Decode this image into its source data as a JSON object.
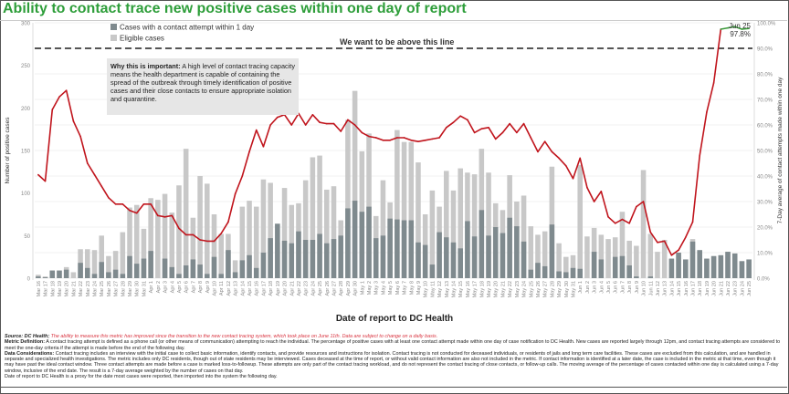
{
  "title": "Ability to contact trace new positive cases within one day of report",
  "chart_data": {
    "type": "bar",
    "title": "Ability to contact trace new positive cases within one day of report",
    "xlabel": "Date of report to DC Health",
    "ylabel": "Number of positive cases",
    "y2label": "7-Day average of contact attempts made within one day",
    "ylim": [
      0,
      300
    ],
    "y2lim": [
      0,
      100
    ],
    "yticks": [
      "0",
      "50",
      "100",
      "150",
      "200",
      "250",
      "300"
    ],
    "y2ticks": [
      "0.0%",
      "10.0%",
      "20.0%",
      "30.0%",
      "40.0%",
      "50.0%",
      "60.0%",
      "70.0%",
      "80.0%",
      "90.0%",
      "100.0%"
    ],
    "legend": [
      {
        "name": "Cases with a contact attempt within 1 day",
        "color": "#7f8a8e"
      },
      {
        "name": "Eligible cases",
        "color": "#c8c8c8"
      }
    ],
    "legend_position": "top-left",
    "target_line": {
      "value_pct": 90,
      "label": "We want to be above this line"
    },
    "end_annotation": {
      "date": "Jun 25",
      "value": "97.8%"
    },
    "line_color_below_target": "#c0141c",
    "line_color_above_target": "#3a9a3a",
    "categories": [
      "Mar 16",
      "Mar 17",
      "Mar 18",
      "Mar 19",
      "Mar 20",
      "Mar 21",
      "Mar 22",
      "Mar 23",
      "Mar 24",
      "Mar 25",
      "Mar 26",
      "Mar 27",
      "Mar 28",
      "Mar 29",
      "Mar 30",
      "Mar 31",
      "Apr 1",
      "Apr 2",
      "Apr 3",
      "Apr 4",
      "Apr 5",
      "Apr 6",
      "Apr 7",
      "Apr 8",
      "Apr 9",
      "Apr 10",
      "Apr 11",
      "Apr 12",
      "Apr 13",
      "Apr 14",
      "Apr 15",
      "Apr 16",
      "Apr 17",
      "Apr 18",
      "Apr 19",
      "Apr 20",
      "Apr 21",
      "Apr 22",
      "Apr 23",
      "Apr 24",
      "Apr 25",
      "Apr 26",
      "Apr 27",
      "Apr 28",
      "Apr 29",
      "Apr 30",
      "May 1",
      "May 2",
      "May 3",
      "May 4",
      "May 5",
      "May 6",
      "May 7",
      "May 8",
      "May 9",
      "May 10",
      "May 11",
      "May 12",
      "May 13",
      "May 14",
      "May 15",
      "May 16",
      "May 17",
      "May 18",
      "May 19",
      "May 20",
      "May 21",
      "May 22",
      "May 23",
      "May 24",
      "May 25",
      "May 26",
      "May 27",
      "May 28",
      "May 29",
      "May 30",
      "May 31",
      "Jun 1",
      "Jun 2",
      "Jun 3",
      "Jun 4",
      "Jun 5",
      "Jun 6",
      "Jun 7",
      "Jun 8",
      "Jun 9",
      "Jun 10",
      "Jun 11",
      "Jun 12",
      "Jun 13",
      "Jun 14",
      "Jun 15",
      "Jun 16",
      "Jun 17",
      "Jun 18",
      "Jun 19",
      "Jun 20",
      "Jun 21",
      "Jun 22",
      "Jun 23",
      "Jun 24",
      "Jun 25"
    ],
    "series": [
      {
        "name": "Eligible cases",
        "values": [
          4,
          2,
          9,
          9,
          13,
          7,
          34,
          34,
          33,
          50,
          26,
          32,
          54,
          83,
          86,
          58,
          94,
          92,
          99,
          77,
          109,
          152,
          71,
          120,
          111,
          75,
          52,
          52,
          21,
          84,
          91,
          84,
          116,
          112,
          42,
          106,
          86,
          88,
          115,
          142,
          144,
          104,
          108,
          68,
          186,
          220,
          149,
          170,
          73,
          115,
          89,
          174,
          160,
          160,
          136,
          75,
          103,
          84,
          126,
          103,
          129,
          124,
          122,
          152,
          124,
          88,
          80,
          121,
          90,
          97,
          61,
          51,
          55,
          131,
          41,
          25,
          27,
          133,
          49,
          59,
          51,
          46,
          48,
          78,
          44,
          38,
          127,
          52,
          31,
          45,
          22,
          28,
          22,
          46,
          32,
          22,
          25,
          25,
          31,
          29,
          20,
          22
        ]
      },
      {
        "name": "Cases with a contact attempt within 1 day",
        "values": [
          2,
          1,
          9,
          9,
          10,
          0,
          18,
          12,
          5,
          19,
          7,
          10,
          5,
          26,
          17,
          23,
          32,
          0,
          23,
          13,
          5,
          15,
          22,
          16,
          5,
          25,
          5,
          33,
          7,
          21,
          27,
          12,
          30,
          47,
          64,
          44,
          41,
          55,
          45,
          45,
          52,
          41,
          46,
          50,
          82,
          91,
          78,
          84,
          47,
          50,
          70,
          69,
          68,
          68,
          42,
          39,
          16,
          54,
          48,
          42,
          35,
          67,
          49,
          80,
          50,
          60,
          53,
          71,
          61,
          43,
          10,
          18,
          14,
          63,
          8,
          7,
          12,
          11,
          0,
          31,
          22,
          0,
          25,
          26,
          15,
          2,
          0,
          2,
          0,
          0,
          23,
          30,
          22,
          43,
          33,
          23,
          26,
          27,
          31,
          29,
          20,
          22
        ]
      },
      {
        "name": "7-Day average %",
        "values": [
          40.5,
          38,
          66,
          71,
          73.5,
          61.5,
          55.5,
          45,
          40.5,
          36,
          31.5,
          29,
          29,
          26.5,
          25.5,
          29,
          29,
          24.5,
          24,
          24.5,
          19.5,
          17,
          17,
          15,
          14.5,
          14.5,
          17.5,
          22,
          33,
          40,
          49.5,
          58,
          51.5,
          60,
          63,
          64,
          60,
          64.5,
          60,
          64,
          61,
          60.5,
          60.5,
          57.5,
          62,
          60,
          57,
          55.5,
          55,
          54,
          54,
          55,
          55,
          54,
          53.5,
          54,
          54.5,
          55,
          59,
          61,
          63.5,
          62,
          57,
          58.5,
          59,
          54.5,
          57,
          60.5,
          57,
          60.5,
          55,
          49.5,
          53.5,
          49.5,
          47,
          44,
          39,
          47,
          35.5,
          30,
          34,
          24,
          21.5,
          23,
          21.5,
          28,
          30,
          18,
          14,
          14.5,
          9,
          11,
          16,
          22,
          48,
          65,
          76.5,
          97.5,
          98,
          98.5,
          97.5,
          97.8
        ]
      }
    ]
  },
  "callout": {
    "heading": "Why this is important:",
    "body": " A high level of contact tracing capacity means the health department is capable of containing the spread of the outbreak through timely identification of positive cases and their close contacts to ensure appropriate isolation and quarantine."
  },
  "footnotes": {
    "source_label": "Source: DC Health;",
    "source_note": " The ability to measure this metric has improved since the transition to the new contact tracing system, which took place on June 11th. Data are subject to change on a daily basis.",
    "metric_label": "Metric Definition:",
    "metric_text": " A contact tracing attempt is defined as a phone call (or other means of communication) attempting to reach the individual. The percentage of positive cases with at least one contact attempt made within one day of case notification to DC Health.  New cases are reported largely through 12pm, and contact tracing attempts are considered to meet the one-day criteria if the attempt is made before the end of the following day.",
    "data_label": "Data Considerations:",
    "data_text": " Contact tracing includes an interview with the initial case to collect basic information, identify contacts, and provide resources and instructions for isolation. Contact tracing is not conducted for deceased individuals, or residents of jails and long term care facilities. These cases are excluded from this calculation, and are handled in separate and specialized health investigations. The metric includes only DC residents, though out of state residents may be interviewed.  Cases deceased at the time of report, or without valid contact information are also not included in the metric. If contact information is identified at a later date, the case is included in the metric at that time, even though it may have past the ideal contact window. Three contact attempts are made before a case is marked loss-to-followup. These attempts are only part of the contact tracing workload, and do not represent the contact tracing of close contacts, or follow-up calls. The moving average of the percentage of cases contacted within one day is calculated using a 7-day window, inclusive of the end date. The result is a 7-day average weighted by the number of cases on that day.",
    "proxy_text": "Date of report to DC Health is a proxy for the date most cases were reported, then imported into the system the following day."
  }
}
